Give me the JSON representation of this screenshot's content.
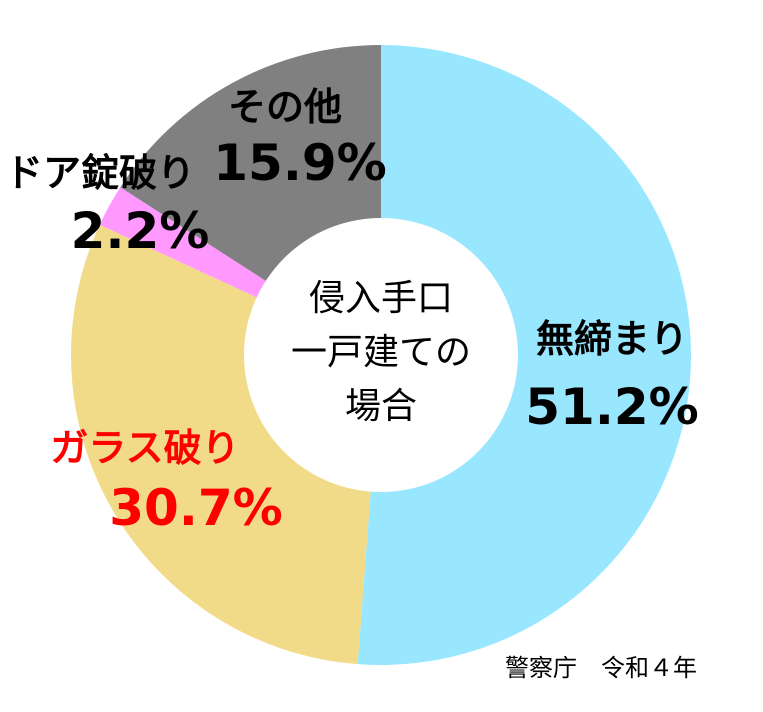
{
  "chart_data": {
    "type": "pie",
    "variant": "donut",
    "center_label": [
      "侵入手口",
      "一戸建ての",
      "場合"
    ],
    "slices": [
      {
        "label": "無締まり",
        "value": 51.2,
        "value_label": "51.2%",
        "color": "#99E6FF",
        "label_color": "#000000"
      },
      {
        "label": "ガラス破り",
        "value": 30.7,
        "value_label": "30.7%",
        "color": "#F2DB88",
        "label_color": "#FF0000"
      },
      {
        "label": "ドア錠破り",
        "value": 2.2,
        "value_label": "2.2%",
        "color": "#FF99FF",
        "label_color": "#000000"
      },
      {
        "label": "その他",
        "value": 15.9,
        "value_label": "15.9%",
        "color": "#808080",
        "label_color": "#000000"
      }
    ],
    "start": "12 o'clock",
    "direction": "clockwise",
    "source": "警察庁　令和４年"
  }
}
